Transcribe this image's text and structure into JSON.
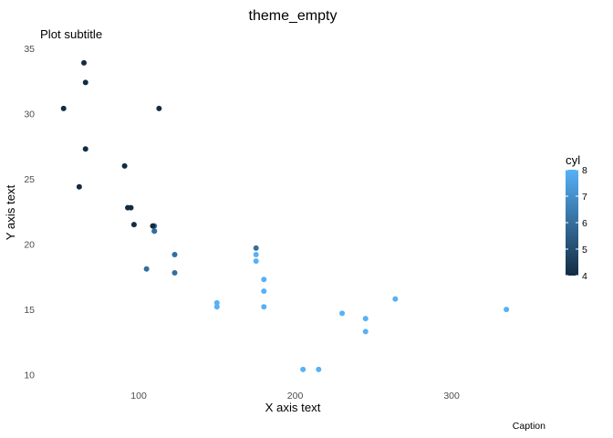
{
  "chart_data": {
    "type": "scatter",
    "title": "theme_empty",
    "subtitle": "Plot subtitle",
    "xlabel": "X axis text",
    "ylabel": "Y axis text",
    "caption": "Caption",
    "theme": "empty",
    "grid": false,
    "xlim": [
      37,
      360
    ],
    "ylim": [
      9.2,
      35.5
    ],
    "xticks": [
      100,
      200,
      300
    ],
    "yticks": [
      10,
      15,
      20,
      25,
      30,
      35
    ],
    "x_tick_labels": [
      "100",
      "200",
      "300"
    ],
    "y_tick_labels": [
      "10",
      "15",
      "20",
      "25",
      "30",
      "35"
    ],
    "color_legend": {
      "title": "cyl",
      "position": "right",
      "min": 4,
      "max": 8,
      "ticks": [
        4,
        5,
        6,
        7,
        8
      ],
      "tick_labels": [
        "4",
        "5",
        "6",
        "7",
        "8"
      ],
      "low_color": "#132B43",
      "high_color": "#56B1F7"
    },
    "points": [
      {
        "x": 110,
        "y": 21.0,
        "color": 6
      },
      {
        "x": 110,
        "y": 21.0,
        "color": 6
      },
      {
        "x": 93,
        "y": 22.8,
        "color": 4
      },
      {
        "x": 110,
        "y": 21.4,
        "color": 6
      },
      {
        "x": 175,
        "y": 18.7,
        "color": 8
      },
      {
        "x": 105,
        "y": 18.1,
        "color": 6
      },
      {
        "x": 245,
        "y": 14.3,
        "color": 8
      },
      {
        "x": 62,
        "y": 24.4,
        "color": 4
      },
      {
        "x": 95,
        "y": 22.8,
        "color": 4
      },
      {
        "x": 123,
        "y": 19.2,
        "color": 6
      },
      {
        "x": 123,
        "y": 17.8,
        "color": 6
      },
      {
        "x": 180,
        "y": 16.4,
        "color": 8
      },
      {
        "x": 180,
        "y": 17.3,
        "color": 8
      },
      {
        "x": 180,
        "y": 15.2,
        "color": 8
      },
      {
        "x": 205,
        "y": 10.4,
        "color": 8
      },
      {
        "x": 215,
        "y": 10.4,
        "color": 8
      },
      {
        "x": 230,
        "y": 14.7,
        "color": 8
      },
      {
        "x": 66,
        "y": 32.4,
        "color": 4
      },
      {
        "x": 52,
        "y": 30.4,
        "color": 4
      },
      {
        "x": 65,
        "y": 33.9,
        "color": 4
      },
      {
        "x": 97,
        "y": 21.5,
        "color": 4
      },
      {
        "x": 150,
        "y": 15.5,
        "color": 8
      },
      {
        "x": 150,
        "y": 15.2,
        "color": 8
      },
      {
        "x": 245,
        "y": 13.3,
        "color": 8
      },
      {
        "x": 175,
        "y": 19.2,
        "color": 8
      },
      {
        "x": 66,
        "y": 27.3,
        "color": 4
      },
      {
        "x": 91,
        "y": 26.0,
        "color": 4
      },
      {
        "x": 113,
        "y": 30.4,
        "color": 4
      },
      {
        "x": 264,
        "y": 15.8,
        "color": 8
      },
      {
        "x": 175,
        "y": 19.7,
        "color": 6
      },
      {
        "x": 335,
        "y": 15.0,
        "color": 8
      },
      {
        "x": 109,
        "y": 21.4,
        "color": 4
      }
    ]
  }
}
